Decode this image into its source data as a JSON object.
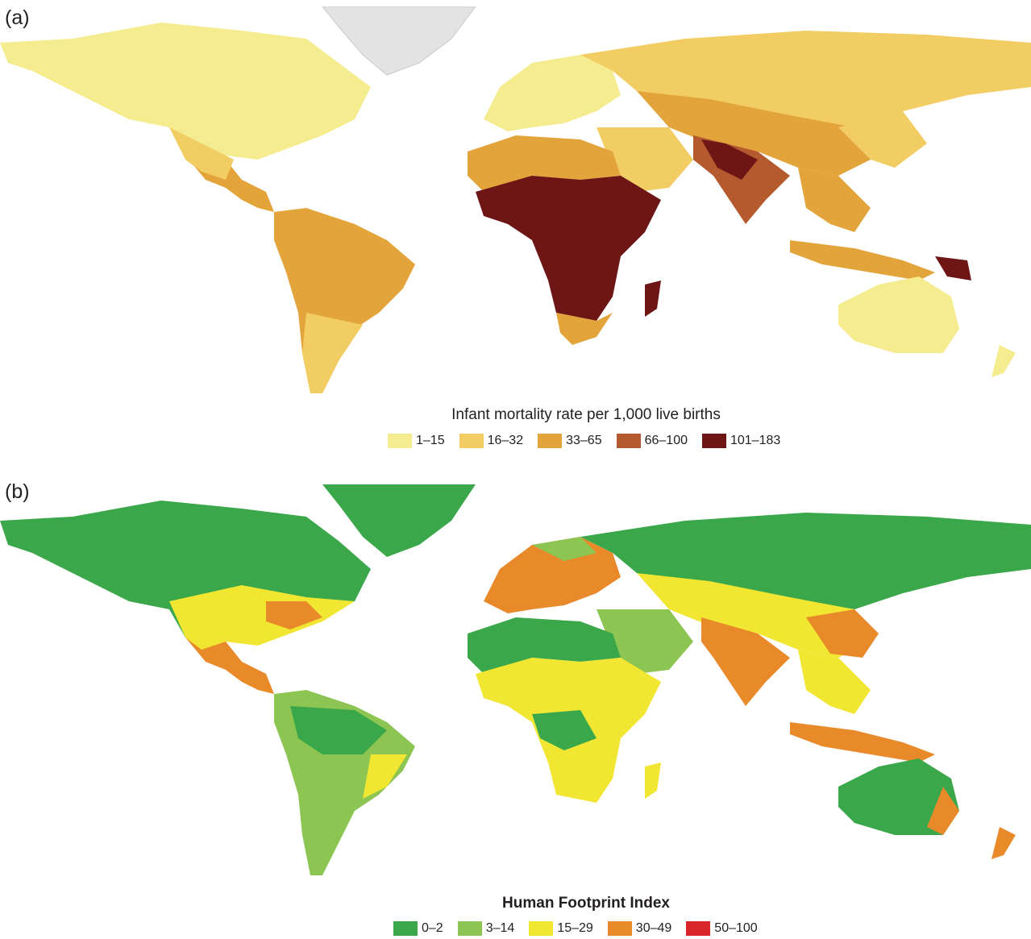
{
  "panel_a": {
    "label": "(a)",
    "legend_title": "Infant mortality rate per 1,000 live births",
    "legend": [
      {
        "label": "1–15",
        "color": "#f5ec8f"
      },
      {
        "label": "16–32",
        "color": "#f2cd63"
      },
      {
        "label": "33–65",
        "color": "#e3a43c"
      },
      {
        "label": "66–100",
        "color": "#b5592e"
      },
      {
        "label": "101–183",
        "color": "#6e1616"
      }
    ]
  },
  "panel_b": {
    "label": "(b)",
    "legend_title": "Human Footprint Index",
    "legend": [
      {
        "label": "0–2",
        "color": "#3aa84a"
      },
      {
        "label": "3–14",
        "color": "#8cc552"
      },
      {
        "label": "15–29",
        "color": "#f1e733"
      },
      {
        "label": "30–49",
        "color": "#e88a2a"
      },
      {
        "label": "50–100",
        "color": "#d9262b"
      }
    ]
  }
}
